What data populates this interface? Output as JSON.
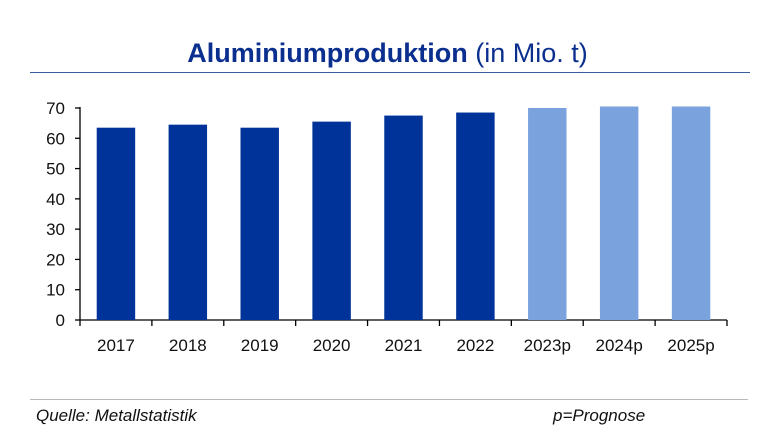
{
  "header": {
    "title_bold": "Aluminiumproduktion",
    "title_rest": "(in Mio. t)"
  },
  "footer": {
    "source": "Quelle: Metallstatistik",
    "note": "p=Prognose"
  },
  "colors": {
    "actual": "#003399",
    "forecast": "#7aa3dd",
    "title": "#0b2f8e",
    "axis": "#000000"
  },
  "chart_data": {
    "type": "bar",
    "title": "Aluminiumproduktion (in Mio. t)",
    "xlabel": "",
    "ylabel": "",
    "categories": [
      "2017",
      "2018",
      "2019",
      "2020",
      "2021",
      "2022",
      "2023p",
      "2024p",
      "2025p"
    ],
    "values": [
      63.5,
      64.5,
      63.5,
      65.5,
      67.5,
      68.5,
      70.0,
      70.5,
      70.5
    ],
    "forecast": [
      false,
      false,
      false,
      false,
      false,
      false,
      true,
      true,
      true
    ],
    "ylim": [
      0,
      70
    ],
    "yticks": [
      0,
      10,
      20,
      30,
      40,
      50,
      60,
      70
    ],
    "grid": false,
    "legend": "none"
  }
}
